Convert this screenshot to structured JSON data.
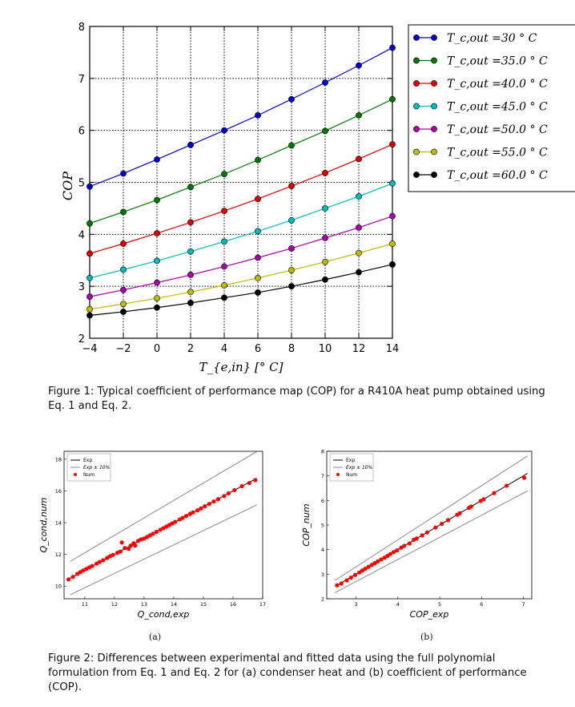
{
  "figure1": {
    "caption": "Figure 1: Typical coefficient of performance map (COP) for a R410A heat pump obtained using Eq. 1 and Eq. 2.",
    "chart_data": {
      "type": "line",
      "xlabel": "T_{e,in} [° C]",
      "ylabel": "COP",
      "xlim": [
        -4,
        14
      ],
      "ylim": [
        2,
        8
      ],
      "xticks": [
        "−4",
        "−2",
        "0",
        "2",
        "4",
        "6",
        "8",
        "10",
        "12",
        "14"
      ],
      "yticks": [
        "2",
        "3",
        "4",
        "5",
        "6",
        "7",
        "8"
      ],
      "grid": true,
      "legend": "outside-right",
      "x": [
        -4,
        -2,
        0,
        2,
        4,
        6,
        8,
        10,
        12,
        14
      ],
      "series": [
        {
          "name": "T_c,out =30 ° C",
          "color": "#0000cc",
          "values": [
            4.92,
            5.17,
            5.44,
            5.72,
            6.0,
            6.29,
            6.6,
            6.92,
            7.25,
            7.59
          ]
        },
        {
          "name": "T_c,out =35.0 ° C",
          "color": "#007700",
          "values": [
            4.21,
            4.43,
            4.66,
            4.91,
            5.16,
            5.43,
            5.71,
            5.99,
            6.29,
            6.6
          ]
        },
        {
          "name": "T_c,out =40.0 ° C",
          "color": "#dd0000",
          "values": [
            3.63,
            3.82,
            4.02,
            4.23,
            4.45,
            4.68,
            4.93,
            5.18,
            5.45,
            5.73
          ]
        },
        {
          "name": "T_c,out =45.0 ° C",
          "color": "#00bbbb",
          "values": [
            3.16,
            3.32,
            3.49,
            3.67,
            3.86,
            4.06,
            4.27,
            4.5,
            4.73,
            4.98
          ]
        },
        {
          "name": "T_c,out =50.0 ° C",
          "color": "#aa00aa",
          "values": [
            2.8,
            2.93,
            3.07,
            3.22,
            3.38,
            3.55,
            3.73,
            3.93,
            4.13,
            4.35
          ]
        },
        {
          "name": "T_c,out =55.0 ° C",
          "color": "#bbbb00",
          "values": [
            2.56,
            2.66,
            2.77,
            2.89,
            3.02,
            3.16,
            3.31,
            3.47,
            3.64,
            3.82
          ]
        },
        {
          "name": "T_c,out =60.0 ° C",
          "color": "#000000",
          "values": [
            2.44,
            2.51,
            2.59,
            2.68,
            2.78,
            2.88,
            3.0,
            3.13,
            3.27,
            3.42
          ]
        }
      ]
    }
  },
  "figure2": {
    "caption": "Figure 2: Differences between experimental and fitted data using the full polynomial formulation from Eq. 1 and Eq. 2 for (a) condenser heat and (b) coefficient of performance (COP).",
    "panels": [
      {
        "label": "(a)",
        "chart_data": {
          "type": "scatter",
          "xlabel": "Q_cond,exp",
          "ylabel": "Q_cond,num",
          "xlim": [
            10.3,
            17
          ],
          "ylim": [
            9.2,
            18.5
          ],
          "xticks": [
            "11",
            "12",
            "13",
            "14",
            "15",
            "16",
            "17"
          ],
          "yticks": [
            "10",
            "12",
            "14",
            "16",
            "18"
          ],
          "legend": "top-left",
          "series": [
            {
              "name": "Exp",
              "color": "#000000",
              "line": [
                [
                  10.5,
                  10.5
                ],
                [
                  16.8,
                  16.8
                ]
              ]
            },
            {
              "name": "Exp ± 10%",
              "color": "#888888",
              "upper": [
                [
                  10.5,
                  11.55
                ],
                [
                  16.8,
                  18.48
                ]
              ],
              "lower": [
                [
                  10.5,
                  9.45
                ],
                [
                  16.8,
                  15.12
                ]
              ]
            },
            {
              "name": "Num",
              "color": "#ff0000",
              "points": [
                [
                  10.45,
                  10.42
                ],
                [
                  10.6,
                  10.58
                ],
                [
                  10.75,
                  10.77
                ],
                [
                  10.85,
                  10.88
                ],
                [
                  10.95,
                  10.99
                ],
                [
                  11.05,
                  11.08
                ],
                [
                  11.15,
                  11.18
                ],
                [
                  11.25,
                  11.27
                ],
                [
                  11.4,
                  11.42
                ],
                [
                  11.5,
                  11.52
                ],
                [
                  11.62,
                  11.63
                ],
                [
                  11.75,
                  11.77
                ],
                [
                  11.85,
                  11.88
                ],
                [
                  11.95,
                  11.97
                ],
                [
                  12.1,
                  12.1
                ],
                [
                  12.2,
                  12.18
                ],
                [
                  12.25,
                  12.75
                ],
                [
                  12.35,
                  12.4
                ],
                [
                  12.48,
                  12.35
                ],
                [
                  12.55,
                  12.55
                ],
                [
                  12.65,
                  12.7
                ],
                [
                  12.7,
                  12.55
                ],
                [
                  12.8,
                  12.85
                ],
                [
                  12.9,
                  12.95
                ],
                [
                  13.0,
                  13.0
                ],
                [
                  13.1,
                  13.1
                ],
                [
                  13.2,
                  13.2
                ],
                [
                  13.3,
                  13.3
                ],
                [
                  13.42,
                  13.42
                ],
                [
                  13.55,
                  13.55
                ],
                [
                  13.65,
                  13.65
                ],
                [
                  13.75,
                  13.75
                ],
                [
                  13.85,
                  13.85
                ],
                [
                  13.95,
                  13.95
                ],
                [
                  14.05,
                  14.05
                ],
                [
                  14.2,
                  14.2
                ],
                [
                  14.3,
                  14.3
                ],
                [
                  14.42,
                  14.42
                ],
                [
                  14.55,
                  14.55
                ],
                [
                  14.65,
                  14.65
                ],
                [
                  14.8,
                  14.78
                ],
                [
                  14.92,
                  14.9
                ],
                [
                  15.05,
                  15.03
                ],
                [
                  15.2,
                  15.18
                ],
                [
                  15.35,
                  15.33
                ],
                [
                  15.5,
                  15.48
                ],
                [
                  15.7,
                  15.68
                ],
                [
                  15.85,
                  15.85
                ],
                [
                  16.05,
                  16.05
                ],
                [
                  16.3,
                  16.3
                ],
                [
                  16.55,
                  16.5
                ],
                [
                  16.75,
                  16.68
                ]
              ]
            }
          ]
        }
      },
      {
        "label": "(b)",
        "chart_data": {
          "type": "scatter",
          "xlabel": "COP_exp",
          "ylabel": "COP_num",
          "xlim": [
            2.3,
            7.2
          ],
          "ylim": [
            2,
            8
          ],
          "xticks": [
            "3",
            "4",
            "5",
            "6",
            "7"
          ],
          "yticks": [
            "2",
            "3",
            "4",
            "5",
            "6",
            "7",
            "8"
          ],
          "legend": "top-left",
          "series": [
            {
              "name": "Exp",
              "color": "#000000",
              "line": [
                [
                  2.5,
                  2.5
                ],
                [
                  7.1,
                  7.1
                ]
              ]
            },
            {
              "name": "Exp ± 10%",
              "color": "#888888",
              "upper": [
                [
                  2.5,
                  2.75
                ],
                [
                  7.1,
                  7.81
                ]
              ],
              "lower": [
                [
                  2.5,
                  2.25
                ],
                [
                  7.1,
                  6.39
                ]
              ]
            },
            {
              "name": "Num",
              "color": "#ff0000",
              "points": [
                [
                  2.55,
                  2.55
                ],
                [
                  2.65,
                  2.62
                ],
                [
                  2.78,
                  2.75
                ],
                [
                  2.88,
                  2.86
                ],
                [
                  2.98,
                  2.97
                ],
                [
                  3.08,
                  3.07
                ],
                [
                  3.15,
                  3.15
                ],
                [
                  3.22,
                  3.22
                ],
                [
                  3.3,
                  3.3
                ],
                [
                  3.38,
                  3.38
                ],
                [
                  3.45,
                  3.45
                ],
                [
                  3.52,
                  3.52
                ],
                [
                  3.6,
                  3.6
                ],
                [
                  3.68,
                  3.67
                ],
                [
                  3.75,
                  3.74
                ],
                [
                  3.82,
                  3.82
                ],
                [
                  3.9,
                  3.9
                ],
                [
                  3.98,
                  3.97
                ],
                [
                  4.08,
                  4.08
                ],
                [
                  4.15,
                  4.15
                ],
                [
                  4.28,
                  4.25
                ],
                [
                  4.38,
                  4.4
                ],
                [
                  4.45,
                  4.45
                ],
                [
                  4.58,
                  4.58
                ],
                [
                  4.7,
                  4.7
                ],
                [
                  4.9,
                  4.9
                ],
                [
                  5.05,
                  5.05
                ],
                [
                  5.2,
                  5.2
                ],
                [
                  5.42,
                  5.42
                ],
                [
                  5.48,
                  5.48
                ],
                [
                  5.7,
                  5.7
                ],
                [
                  5.75,
                  5.75
                ],
                [
                  5.98,
                  5.98
                ],
                [
                  6.05,
                  6.05
                ],
                [
                  6.3,
                  6.3
                ],
                [
                  6.6,
                  6.6
                ],
                [
                  7.02,
                  6.92
                ]
              ]
            }
          ]
        }
      }
    ]
  }
}
